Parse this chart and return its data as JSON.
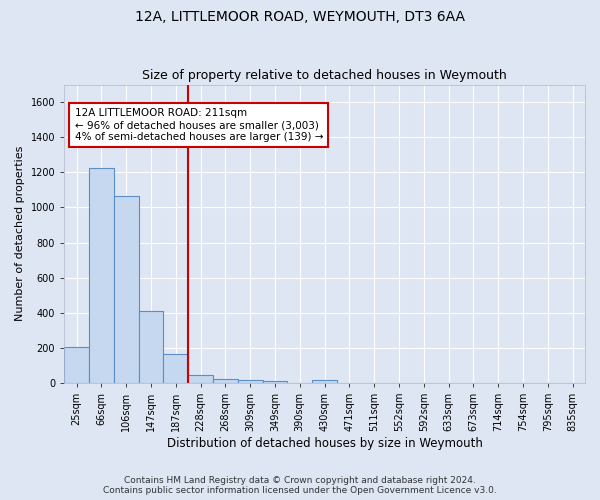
{
  "title": "12A, LITTLEMOOR ROAD, WEYMOUTH, DT3 6AA",
  "subtitle": "Size of property relative to detached houses in Weymouth",
  "xlabel": "Distribution of detached houses by size in Weymouth",
  "ylabel": "Number of detached properties",
  "footnote": "Contains HM Land Registry data © Crown copyright and database right 2024.\nContains public sector information licensed under the Open Government Licence v3.0.",
  "categories": [
    "25sqm",
    "66sqm",
    "106sqm",
    "147sqm",
    "187sqm",
    "228sqm",
    "268sqm",
    "309sqm",
    "349sqm",
    "390sqm",
    "430sqm",
    "471sqm",
    "511sqm",
    "552sqm",
    "592sqm",
    "633sqm",
    "673sqm",
    "714sqm",
    "754sqm",
    "795sqm",
    "835sqm"
  ],
  "values": [
    205,
    1225,
    1065,
    410,
    165,
    47,
    25,
    18,
    12,
    0,
    14,
    0,
    0,
    0,
    0,
    0,
    0,
    0,
    0,
    0,
    0
  ],
  "bar_color": "#c5d8ef",
  "bar_edge_color": "#5b8ec4",
  "vline_x_idx": 5,
  "vline_color": "#cc0000",
  "annotation_line1": "12A LITTLEMOOR ROAD: 211sqm",
  "annotation_line2": "← 96% of detached houses are smaller (3,003)",
  "annotation_line3": "4% of semi-detached houses are larger (139) →",
  "annotation_box_facecolor": "#ffffff",
  "annotation_box_edgecolor": "#cc0000",
  "ylim": [
    0,
    1700
  ],
  "yticks": [
    0,
    200,
    400,
    600,
    800,
    1000,
    1200,
    1400,
    1600
  ],
  "bg_color": "#dde6f2",
  "plot_bg_color": "#dde6f2",
  "grid_color": "#ffffff",
  "title_fontsize": 10,
  "subtitle_fontsize": 9,
  "tick_fontsize": 7,
  "ylabel_fontsize": 8,
  "xlabel_fontsize": 8.5,
  "footnote_fontsize": 6.5
}
